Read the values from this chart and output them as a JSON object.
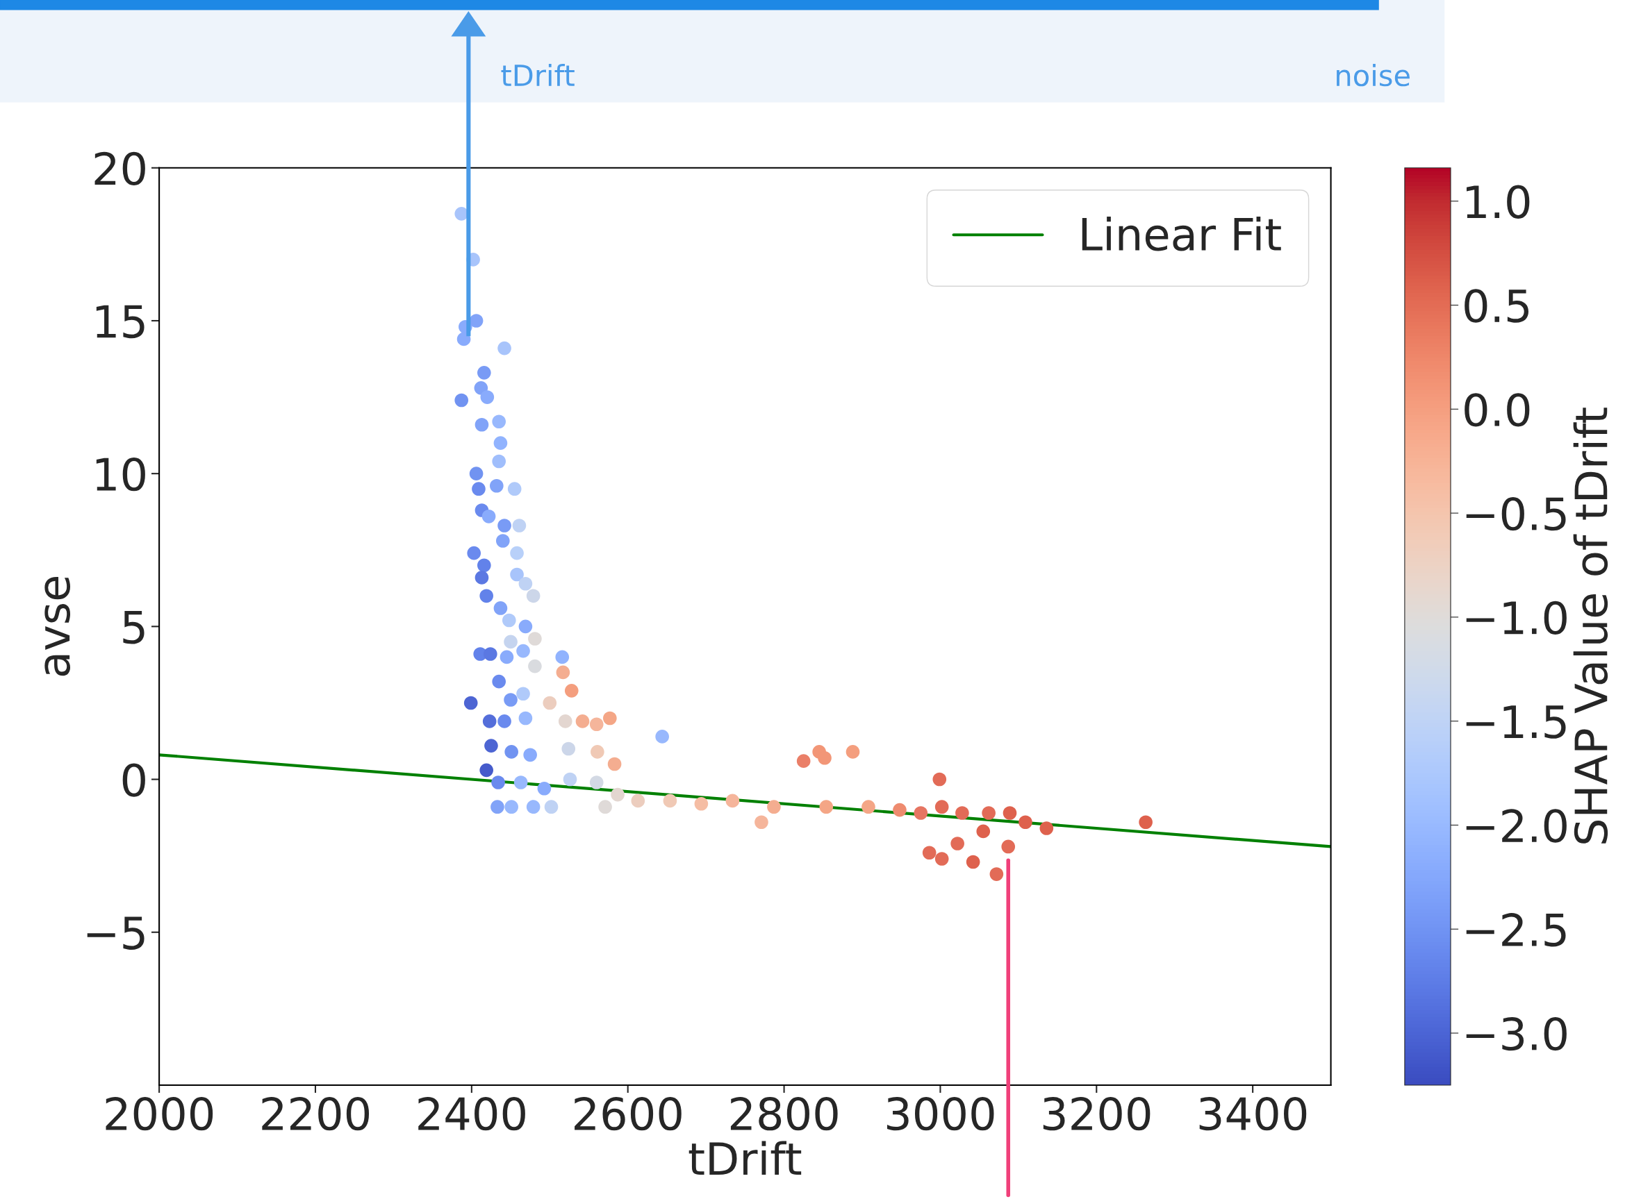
{
  "chart_data": {
    "type": "scatter",
    "xlabel": "tDrift",
    "ylabel": "avse",
    "clabel": "SHAP Value of tDrift",
    "xlim": [
      2000,
      3500
    ],
    "xticks": [
      2000,
      2200,
      2400,
      2600,
      2800,
      3000,
      3200,
      3400
    ],
    "ylim": [
      -10,
      20
    ],
    "yticks": [
      -5,
      0,
      5,
      10,
      15,
      20
    ],
    "clim": [
      -3.25,
      1.16
    ],
    "cticks": [
      {
        "value": -3,
        "label": "−3.0"
      },
      -2.5,
      {
        "value": -2,
        "label": "−2.0"
      },
      -1.5,
      {
        "value": -1,
        "label": "−1.0"
      },
      -0.5,
      {
        "value": 0,
        "label": "0.0"
      },
      0.5,
      {
        "value": 1,
        "label": "1.0"
      }
    ],
    "legend": "top right",
    "grid": false,
    "annotations": [
      "tDrift",
      "noise"
    ],
    "ref_lines": [
      {
        "axis": "x",
        "value": 3087,
        "color": "#f0407a"
      }
    ],
    "series": [
      {
        "type": "scatter",
        "marker": "circle",
        "x": [
          2387,
          2402,
          2392,
          2390,
          2406,
          2442,
          2416,
          2412,
          2387,
          2420,
          2413,
          2435,
          2437,
          2435,
          2406,
          2409,
          2432,
          2455,
          2413,
          2422,
          2442,
          2461,
          2403,
          2416,
          2440,
          2458,
          2413,
          2458,
          2419,
          2469,
          2479,
          2437,
          2448,
          2469,
          2481,
          2450,
          2411,
          2424,
          2445,
          2466,
          2516,
          2517,
          2528,
          2481,
          2435,
          2399,
          2450,
          2466,
          2500,
          2423,
          2442,
          2469,
          2520,
          2542,
          2560,
          2644,
          2577,
          2425,
          2451,
          2475,
          2524,
          2561,
          2583,
          2419,
          2434,
          2463,
          2493,
          2526,
          2560,
          2587,
          2433,
          2451,
          2479,
          2502,
          2571,
          2613,
          2654,
          2694,
          2734,
          2771,
          2787,
          2825,
          2845,
          2852,
          2888,
          2854,
          2908,
          2948,
          2975,
          2999,
          3002,
          3028,
          3062,
          3089,
          2986,
          3002,
          3022,
          3042,
          3072,
          3087,
          3055,
          3109,
          3136,
          3263
        ],
        "values": [
          18.5,
          17.0,
          14.8,
          14.4,
          15.0,
          14.1,
          13.3,
          12.8,
          12.4,
          12.5,
          11.6,
          11.7,
          11.0,
          10.4,
          10.0,
          9.5,
          9.6,
          9.5,
          8.8,
          8.6,
          8.3,
          8.3,
          7.4,
          7.0,
          7.8,
          7.4,
          6.6,
          6.7,
          6.0,
          6.4,
          6.0,
          5.6,
          5.2,
          5.0,
          4.6,
          4.5,
          4.1,
          4.1,
          4.0,
          4.2,
          4.0,
          3.5,
          2.9,
          3.7,
          3.2,
          2.5,
          2.6,
          2.8,
          2.5,
          1.9,
          1.9,
          2.0,
          1.9,
          1.9,
          1.8,
          1.4,
          2.0,
          1.1,
          0.9,
          0.8,
          1.0,
          0.9,
          0.5,
          0.3,
          -0.1,
          -0.1,
          -0.3,
          0.0,
          -0.1,
          -0.5,
          -0.9,
          -0.9,
          -0.9,
          -0.9,
          -0.9,
          -0.7,
          -0.7,
          -0.8,
          -0.7,
          -1.4,
          -0.9,
          0.6,
          0.9,
          0.7,
          0.9,
          -0.9,
          -0.9,
          -1.0,
          -1.1,
          0.0,
          -0.9,
          -1.1,
          -1.1,
          -1.1,
          -2.4,
          -2.6,
          -2.1,
          -2.7,
          -3.1,
          -2.2,
          -1.7,
          -1.4,
          -1.6,
          -1.4
        ],
        "colors": [
          "#a8c4fb",
          "#a8c4fb",
          "#89abfc",
          "#89abfc",
          "#81a3f8",
          "#a8c4fb",
          "#799bf5",
          "#81a3f8",
          "#7193f1",
          "#89abfc",
          "#81a3f8",
          "#98b8fd",
          "#91b3fe",
          "#a0befc",
          "#7193f1",
          "#6a8aee",
          "#81a3f8",
          "#b0cafa",
          "#6a8aee",
          "#89abfc",
          "#799bf5",
          "#bfd2f4",
          "#6a8aee",
          "#6282ea",
          "#81a3f8",
          "#b8d0f9",
          "#5b78e2",
          "#a8c4fb",
          "#6282ea",
          "#bfd2f4",
          "#ccd6e9",
          "#81a3f8",
          "#b0cafa",
          "#89abfc",
          "#dfdad8",
          "#c5d4ef",
          "#6282ea",
          "#5b78e2",
          "#89abfc",
          "#98b8fd",
          "#91b3fe",
          "#f4ad90",
          "#f49e7e",
          "#d9dbdf",
          "#6a8aee",
          "#4d65d3",
          "#799bf5",
          "#b0cafa",
          "#eccdbe",
          "#546eda",
          "#6a8aee",
          "#98b8fd",
          "#e3d6d0",
          "#f4ad90",
          "#f5b59b",
          "#98b8fd",
          "#f4a686",
          "#4d65d3",
          "#7193f1",
          "#89abfc",
          "#ccd6e9",
          "#f0c9b5",
          "#f4ad90",
          "#465bcb",
          "#6a8aee",
          "#98b8fd",
          "#89abfc",
          "#bfd2f4",
          "#d3d9e4",
          "#e3d6d0",
          "#81a3f8",
          "#98b8fd",
          "#98b8fd",
          "#bfd2f4",
          "#dfdad8",
          "#eccdbe",
          "#f0c9b5",
          "#f5bda4",
          "#f5b59b",
          "#f5b59b",
          "#f4ad90",
          "#ea7f68",
          "#f29677",
          "#f29677",
          "#f49e7e",
          "#f4a686",
          "#f4a686",
          "#ee8b6f",
          "#e67562",
          "#e26b57",
          "#e26b57",
          "#e26b57",
          "#e26b57",
          "#de614d",
          "#e26b57",
          "#e26b57",
          "#e26b57",
          "#de614d",
          "#e26b57",
          "#e26b57",
          "#de614d",
          "#de614d",
          "#de614d",
          "#de614d"
        ]
      },
      {
        "type": "line",
        "name": "Linear Fit",
        "color": "#008000",
        "x": [
          2000,
          3500
        ],
        "values": [
          0.8,
          -2.2
        ]
      }
    ]
  }
}
